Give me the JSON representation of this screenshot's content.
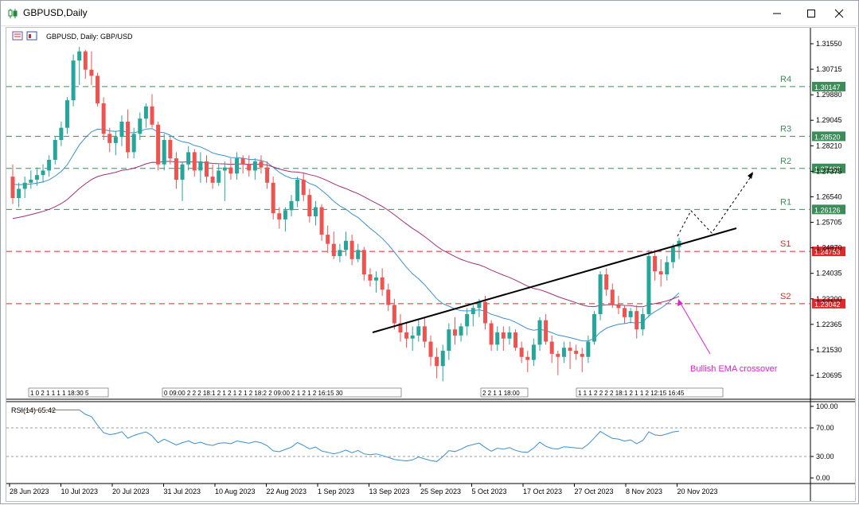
{
  "window": {
    "title": "GBPUSD,Daily"
  },
  "chart_header": "GBPUSD, Daily:  GBP/USD",
  "rsi_label": "RSI(14) 65.42",
  "annotation": "Bullish EMA crossover",
  "colors": {
    "bull": "#26a69a",
    "bear": "#ef5350",
    "ema_fast": "#3a8fd0",
    "ema_slow": "#a0307a",
    "resistance": "#3c8c5a",
    "support": "#e0282a",
    "annotation": "#e020d0",
    "rsi": "#3a8fd0"
  },
  "price_axis": {
    "ticks": [
      "1.31550",
      "1.30715",
      "1.29880",
      "1.29045",
      "1.28210",
      "1.27375",
      "1.26540",
      "1.25705",
      "1.24870",
      "1.24035",
      "1.23200",
      "1.22365",
      "1.21530",
      "1.20695"
    ]
  },
  "levels": [
    {
      "name": "R4",
      "price": 1.30147,
      "label": "1.30147",
      "type": "resistance"
    },
    {
      "name": "R3",
      "price": 1.2852,
      "label": "1.28520",
      "type": "resistance"
    },
    {
      "name": "R2",
      "price": 1.27469,
      "label": "1.27469",
      "type": "resistance"
    },
    {
      "name": "R1",
      "price": 1.26126,
      "label": "1.26126",
      "type": "resistance"
    },
    {
      "name": "S1",
      "price": 1.24753,
      "label": "1.24753",
      "type": "support"
    },
    {
      "name": "S2",
      "price": 1.23042,
      "label": "1.23042",
      "type": "support"
    }
  ],
  "date_axis": [
    "28 Jun 2023",
    "10 Jul 2023",
    "20 Jul 2023",
    "31 Jul 2023",
    "10 Aug 2023",
    "22 Aug 2023",
    "1 Sep 2023",
    "13 Sep 2023",
    "25 Sep 2023",
    "5 Oct 2023",
    "17 Oct 2023",
    "27 Oct 2023",
    "8 Nov 2023",
    "20 Nov 2023"
  ],
  "rsi_axis": [
    "100.00",
    "70.00",
    "30.00",
    "0.00"
  ],
  "session_strips": [
    {
      "text": "1 0 2 1 1 1 1 18:30 5"
    },
    {
      "text": "0 09:00 2 2 2 18:1 2 1 2 1 2 1 2 18:2 2 09:00 2 1 2 1 2 16:15 30"
    },
    {
      "text": "2 2 1 1 18:00"
    },
    {
      "text": "1 1 1 2 2 2 2 18:1 2 1 1 2 12:15 16:45"
    }
  ],
  "chart_data": {
    "type": "candlestick",
    "symbol": "GBPUSD",
    "timeframe": "Daily",
    "candles_ohlc": [
      [
        1.272,
        1.276,
        1.263,
        1.265
      ],
      [
        1.265,
        1.27,
        1.262,
        1.268
      ],
      [
        1.268,
        1.272,
        1.265,
        1.27
      ],
      [
        1.27,
        1.274,
        1.268,
        1.271
      ],
      [
        1.271,
        1.275,
        1.269,
        1.2725
      ],
      [
        1.2725,
        1.276,
        1.27,
        1.274
      ],
      [
        1.274,
        1.279,
        1.272,
        1.2775
      ],
      [
        1.2775,
        1.285,
        1.276,
        1.284
      ],
      [
        1.284,
        1.29,
        1.282,
        1.288
      ],
      [
        1.288,
        1.298,
        1.286,
        1.297
      ],
      [
        1.297,
        1.312,
        1.295,
        1.31
      ],
      [
        1.31,
        1.3145,
        1.302,
        1.313
      ],
      [
        1.313,
        1.3135,
        1.304,
        1.307
      ],
      [
        1.307,
        1.313,
        1.302,
        1.305
      ],
      [
        1.305,
        1.306,
        1.295,
        1.296
      ],
      [
        1.296,
        1.298,
        1.284,
        1.286
      ],
      [
        1.286,
        1.288,
        1.28,
        1.283
      ],
      [
        1.283,
        1.287,
        1.279,
        1.285
      ],
      [
        1.285,
        1.292,
        1.282,
        1.29
      ],
      [
        1.29,
        1.294,
        1.278,
        1.28
      ],
      [
        1.28,
        1.288,
        1.278,
        1.286
      ],
      [
        1.286,
        1.293,
        1.284,
        1.291
      ],
      [
        1.291,
        1.296,
        1.288,
        1.295
      ],
      [
        1.295,
        1.299,
        1.288,
        1.289
      ],
      [
        1.289,
        1.29,
        1.274,
        1.276
      ],
      [
        1.276,
        1.286,
        1.274,
        1.284
      ],
      [
        1.284,
        1.285,
        1.276,
        1.278
      ],
      [
        1.278,
        1.28,
        1.268,
        1.271
      ],
      [
        1.271,
        1.277,
        1.264,
        1.276
      ],
      [
        1.276,
        1.282,
        1.274,
        1.28
      ],
      [
        1.28,
        1.281,
        1.272,
        1.274
      ],
      [
        1.274,
        1.28,
        1.27,
        1.277
      ],
      [
        1.277,
        1.279,
        1.27,
        1.272
      ],
      [
        1.272,
        1.276,
        1.268,
        1.27
      ],
      [
        1.27,
        1.276,
        1.269,
        1.274
      ],
      [
        1.274,
        1.277,
        1.264,
        1.275
      ],
      [
        1.275,
        1.278,
        1.271,
        1.273
      ],
      [
        1.273,
        1.28,
        1.271,
        1.278
      ],
      [
        1.278,
        1.279,
        1.273,
        1.276
      ],
      [
        1.276,
        1.279,
        1.272,
        1.274
      ],
      [
        1.274,
        1.278,
        1.271,
        1.277
      ],
      [
        1.277,
        1.279,
        1.273,
        1.275
      ],
      [
        1.275,
        1.277,
        1.268,
        1.27
      ],
      [
        1.27,
        1.272,
        1.258,
        1.26
      ],
      [
        1.26,
        1.262,
        1.255,
        1.258
      ],
      [
        1.258,
        1.262,
        1.254,
        1.261
      ],
      [
        1.261,
        1.266,
        1.259,
        1.264
      ],
      [
        1.264,
        1.272,
        1.262,
        1.271
      ],
      [
        1.271,
        1.273,
        1.264,
        1.266
      ],
      [
        1.266,
        1.268,
        1.257,
        1.259
      ],
      [
        1.259,
        1.264,
        1.256,
        1.262
      ],
      [
        1.262,
        1.263,
        1.251,
        1.253
      ],
      [
        1.253,
        1.256,
        1.247,
        1.25
      ],
      [
        1.25,
        1.254,
        1.245,
        1.246
      ],
      [
        1.246,
        1.25,
        1.244,
        1.248
      ],
      [
        1.248,
        1.254,
        1.246,
        1.251
      ],
      [
        1.251,
        1.253,
        1.243,
        1.245
      ],
      [
        1.245,
        1.25,
        1.244,
        1.248
      ],
      [
        1.248,
        1.249,
        1.238,
        1.24
      ],
      [
        1.24,
        1.242,
        1.236,
        1.238
      ],
      [
        1.238,
        1.241,
        1.234,
        1.239
      ],
      [
        1.239,
        1.242,
        1.233,
        1.235
      ],
      [
        1.235,
        1.237,
        1.228,
        1.23
      ],
      [
        1.23,
        1.232,
        1.222,
        1.224
      ],
      [
        1.224,
        1.227,
        1.218,
        1.221
      ],
      [
        1.221,
        1.224,
        1.216,
        1.219
      ],
      [
        1.219,
        1.223,
        1.215,
        1.22
      ],
      [
        1.22,
        1.225,
        1.218,
        1.223
      ],
      [
        1.223,
        1.226,
        1.216,
        1.218
      ],
      [
        1.218,
        1.22,
        1.21,
        1.213
      ],
      [
        1.213,
        1.216,
        1.206,
        1.21
      ],
      [
        1.21,
        1.217,
        1.205,
        1.215
      ],
      [
        1.215,
        1.224,
        1.212,
        1.222
      ],
      [
        1.222,
        1.226,
        1.217,
        1.22
      ],
      [
        1.22,
        1.224,
        1.218,
        1.223
      ],
      [
        1.223,
        1.229,
        1.22,
        1.227
      ],
      [
        1.227,
        1.23,
        1.223,
        1.229
      ],
      [
        1.229,
        1.232,
        1.226,
        1.231
      ],
      [
        1.231,
        1.233,
        1.222,
        1.224
      ],
      [
        1.224,
        1.225,
        1.215,
        1.217
      ],
      [
        1.217,
        1.223,
        1.215,
        1.221
      ],
      [
        1.221,
        1.223,
        1.215,
        1.219
      ],
      [
        1.219,
        1.223,
        1.217,
        1.221
      ],
      [
        1.221,
        1.222,
        1.215,
        1.216
      ],
      [
        1.216,
        1.218,
        1.211,
        1.213
      ],
      [
        1.213,
        1.215,
        1.208,
        1.212
      ],
      [
        1.212,
        1.219,
        1.21,
        1.217
      ],
      [
        1.217,
        1.226,
        1.215,
        1.225
      ],
      [
        1.225,
        1.227,
        1.217,
        1.218
      ],
      [
        1.218,
        1.22,
        1.211,
        1.214
      ],
      [
        1.214,
        1.215,
        1.207,
        1.213
      ],
      [
        1.213,
        1.218,
        1.211,
        1.216
      ],
      [
        1.216,
        1.218,
        1.209,
        1.215
      ],
      [
        1.215,
        1.217,
        1.212,
        1.214
      ],
      [
        1.214,
        1.216,
        1.208,
        1.213
      ],
      [
        1.213,
        1.22,
        1.211,
        1.218
      ],
      [
        1.218,
        1.228,
        1.217,
        1.227
      ],
      [
        1.227,
        1.241,
        1.225,
        1.24
      ],
      [
        1.24,
        1.242,
        1.233,
        1.235
      ],
      [
        1.235,
        1.237,
        1.229,
        1.23
      ],
      [
        1.23,
        1.233,
        1.227,
        1.229
      ],
      [
        1.229,
        1.23,
        1.224,
        1.226
      ],
      [
        1.226,
        1.229,
        1.224,
        1.228
      ],
      [
        1.228,
        1.23,
        1.219,
        1.222
      ],
      [
        1.222,
        1.229,
        1.22,
        1.227
      ],
      [
        1.227,
        1.248,
        1.226,
        1.246
      ],
      [
        1.246,
        1.248,
        1.238,
        1.241
      ],
      [
        1.241,
        1.245,
        1.236,
        1.24
      ],
      [
        1.24,
        1.246,
        1.238,
        1.244
      ],
      [
        1.244,
        1.25,
        1.242,
        1.249
      ],
      [
        1.249,
        1.252,
        1.245,
        1.251
      ]
    ],
    "ema_fast_values_note": "20-period moving average (blue), 50-period moving average (purple)",
    "rsi_period": 14,
    "rsi_last": 65.42
  }
}
